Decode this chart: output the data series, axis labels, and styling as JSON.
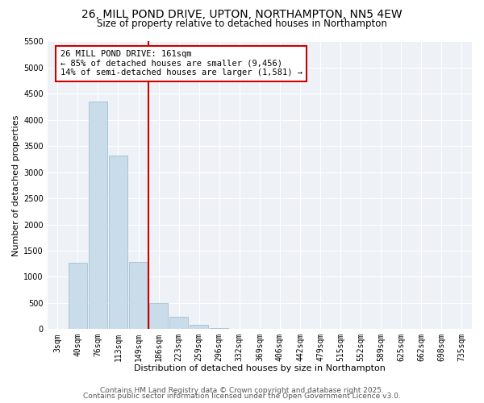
{
  "title": "26, MILL POND DRIVE, UPTON, NORTHAMPTON, NN5 4EW",
  "subtitle": "Size of property relative to detached houses in Northampton",
  "xlabel": "Distribution of detached houses by size in Northampton",
  "ylabel": "Number of detached properties",
  "bar_labels": [
    "3sqm",
    "40sqm",
    "76sqm",
    "113sqm",
    "149sqm",
    "186sqm",
    "223sqm",
    "259sqm",
    "296sqm",
    "332sqm",
    "369sqm",
    "406sqm",
    "442sqm",
    "479sqm",
    "515sqm",
    "552sqm",
    "589sqm",
    "625sqm",
    "662sqm",
    "698sqm",
    "735sqm"
  ],
  "bar_values": [
    0,
    1270,
    4350,
    3320,
    1280,
    500,
    240,
    75,
    20,
    5,
    2,
    1,
    0,
    0,
    0,
    0,
    0,
    0,
    0,
    0,
    0
  ],
  "bar_color": "#c8dcea",
  "bar_edge_color": "#9ab8cc",
  "vline_color": "#cc0000",
  "annotation_title": "26 MILL POND DRIVE: 161sqm",
  "annotation_line1": "← 85% of detached houses are smaller (9,456)",
  "annotation_line2": "14% of semi-detached houses are larger (1,581) →",
  "annotation_box_facecolor": "#ffffff",
  "annotation_box_edgecolor": "#cc0000",
  "ylim": [
    0,
    5500
  ],
  "yticks": [
    0,
    500,
    1000,
    1500,
    2000,
    2500,
    3000,
    3500,
    4000,
    4500,
    5000,
    5500
  ],
  "footer1": "Contains HM Land Registry data © Crown copyright and database right 2025.",
  "footer2": "Contains public sector information licensed under the Open Government Licence v3.0.",
  "bg_color": "#ffffff",
  "plot_bg_color": "#eef2f7",
  "grid_color": "#ffffff",
  "title_fontsize": 10,
  "subtitle_fontsize": 8.5,
  "axis_label_fontsize": 8,
  "tick_fontsize": 7,
  "annotation_fontsize": 7.5,
  "footer_fontsize": 6.5
}
